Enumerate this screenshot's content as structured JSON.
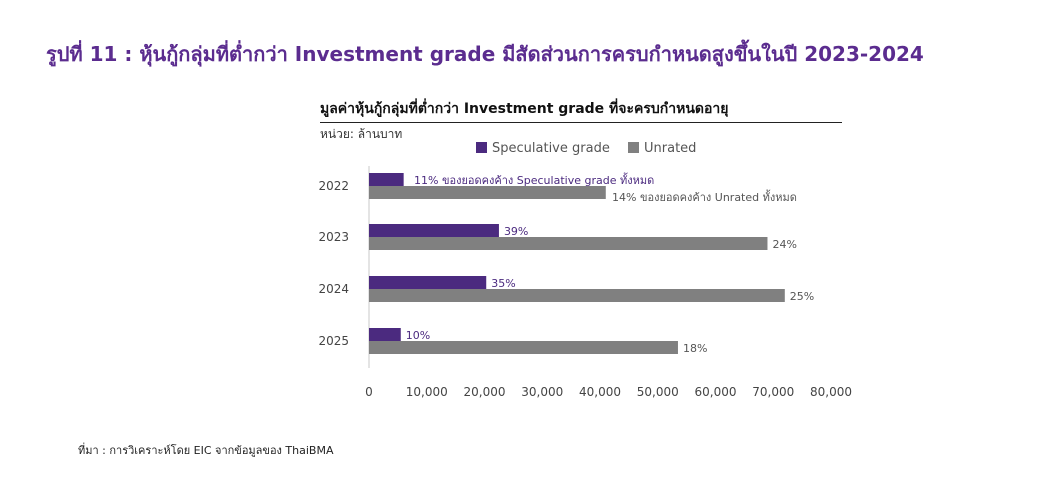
{
  "figure_title": "รูปที่ 11 : หุ้นกู้กลุ่มที่ต่ำกว่า Investment grade มีสัดส่วนการครบกำหนดสูงขึ้นในปี 2023-2024",
  "source": "ที่มา : การวิเคราะห์โดย EIC จากข้อมูลของ ThaiBMA",
  "colors": {
    "speculative": "#4b2a7f",
    "unrated": "#808080",
    "title": "#5b2c8f"
  },
  "chart_data": {
    "type": "bar",
    "orientation": "horizontal",
    "title": "มูลค่าหุ้นกู้กลุ่มที่ต่ำกว่า Investment grade ที่จะครบกำหนดอายุ",
    "unit_label": "หน่วย: ล้านบาท",
    "categories": [
      "2022",
      "2023",
      "2024",
      "2025"
    ],
    "series": [
      {
        "name": "Speculative grade",
        "color": "#4b2a7f",
        "values": [
          6000,
          22500,
          20300,
          5500
        ],
        "labels": [
          "11% ของยอดคงค้าง Speculative grade ทั้งหมด",
          "39%",
          "35%",
          "10%"
        ]
      },
      {
        "name": "Unrated",
        "color": "#808080",
        "values": [
          41000,
          69000,
          72000,
          53500
        ],
        "labels": [
          "14% ของยอดคงค้าง Unrated ทั้งหมด",
          "24%",
          "25%",
          "18%"
        ]
      }
    ],
    "xlim": [
      0,
      80000
    ],
    "xticks": [
      0,
      10000,
      20000,
      30000,
      40000,
      50000,
      60000,
      70000,
      80000
    ],
    "xtick_labels": [
      "0",
      "10,000",
      "20,000",
      "30,000",
      "40,000",
      "50,000",
      "60,000",
      "70,000",
      "80,000"
    ],
    "legend_position": "top",
    "grid": false
  }
}
